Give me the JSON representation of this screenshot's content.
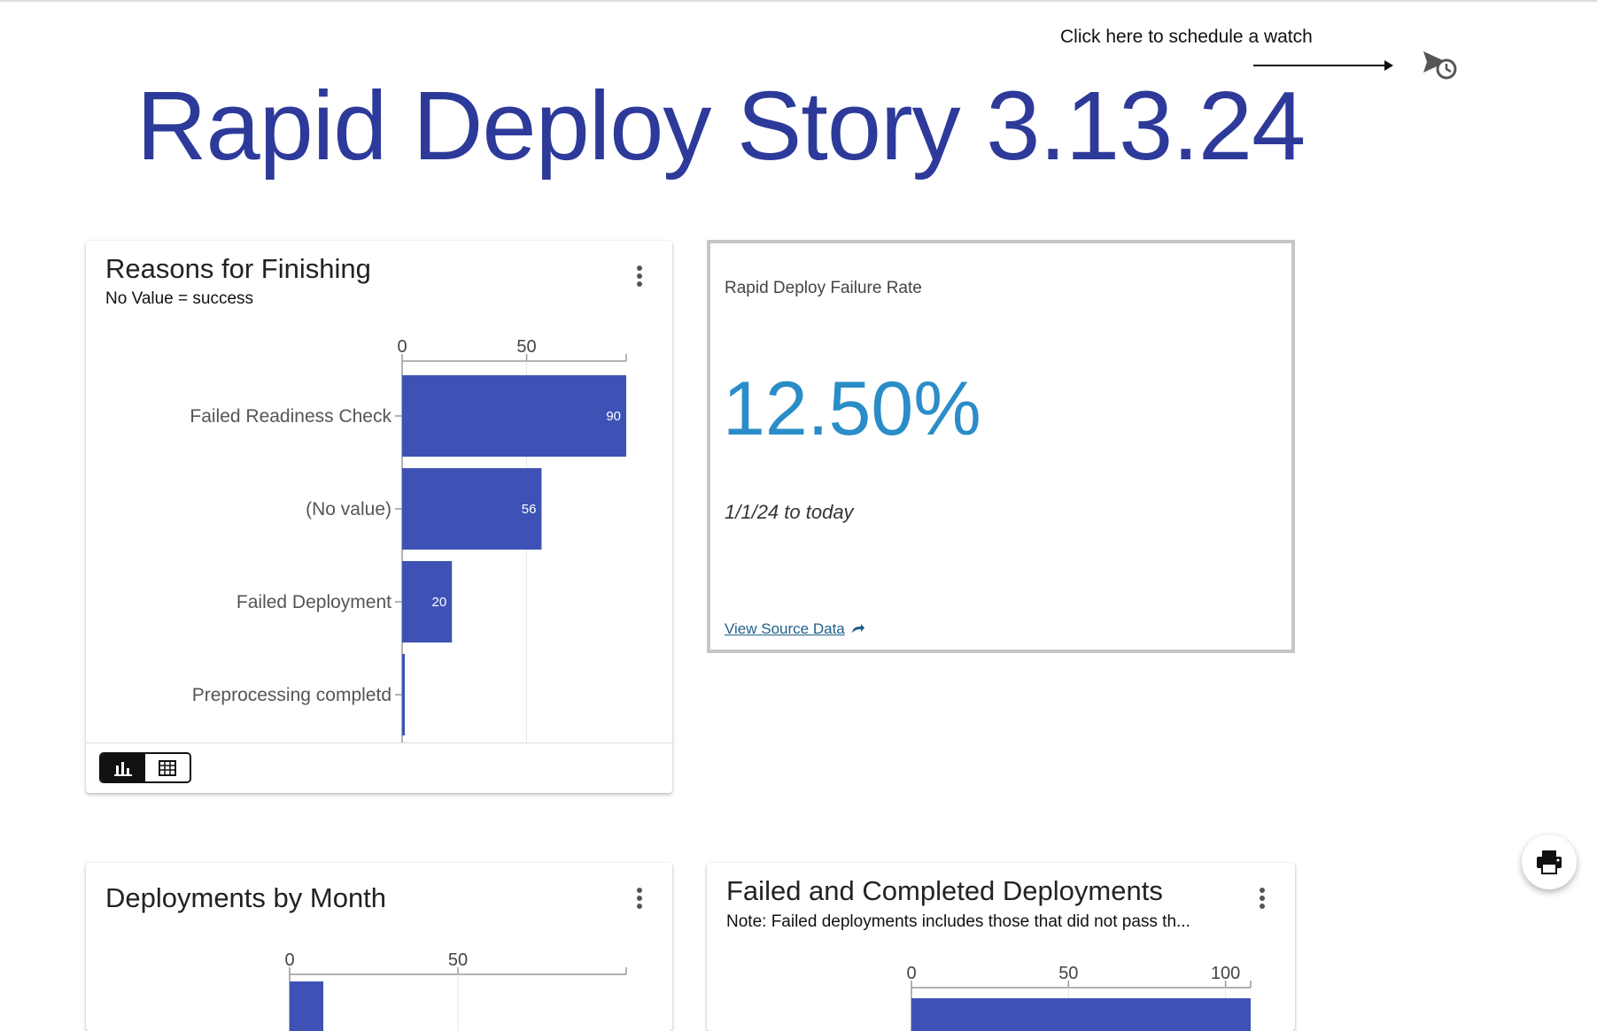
{
  "header": {
    "hint": "Click here to schedule a watch",
    "title": "Rapid Deploy Story 3.13.24"
  },
  "cards": {
    "reasons": {
      "title": "Reasons for Finishing",
      "subtitle": "No Value = success",
      "view_toggle": {
        "selected": "chart"
      }
    },
    "kpi": {
      "label": "Rapid Deploy Failure Rate",
      "value": "12.50%",
      "range": "1/1/24 to today",
      "link": "View Source Data"
    },
    "by_month": {
      "title": "Deployments by Month"
    },
    "failed_completed": {
      "title": "Failed and Completed Deployments",
      "subtitle": "Note: Failed deployments includes those that did not pass th..."
    }
  },
  "colors": {
    "bar": "#3e52b5",
    "title": "#2d3a9a",
    "kpi": "#2a8dc8"
  },
  "chart_data": [
    {
      "type": "bar",
      "orientation": "horizontal",
      "categories": [
        "Failed Readiness Check",
        "(No value)",
        "Failed Deployment",
        "Preprocessing completd"
      ],
      "values": [
        90,
        56,
        20,
        1
      ],
      "data_labels": [
        "90",
        "56",
        "20",
        ""
      ],
      "xlim": [
        0,
        90
      ],
      "xticks": [
        "0",
        "50"
      ],
      "grid": true
    },
    {
      "type": "bar",
      "orientation": "horizontal",
      "categories": [
        ""
      ],
      "values": [
        10
      ],
      "xlim": [
        0,
        100
      ],
      "xticks": [
        "0",
        "50"
      ],
      "grid": true
    },
    {
      "type": "bar",
      "orientation": "horizontal",
      "categories": [
        ""
      ],
      "values": [
        108
      ],
      "xlim": [
        0,
        108
      ],
      "xticks": [
        "0",
        "50",
        "100"
      ],
      "grid": true
    }
  ]
}
